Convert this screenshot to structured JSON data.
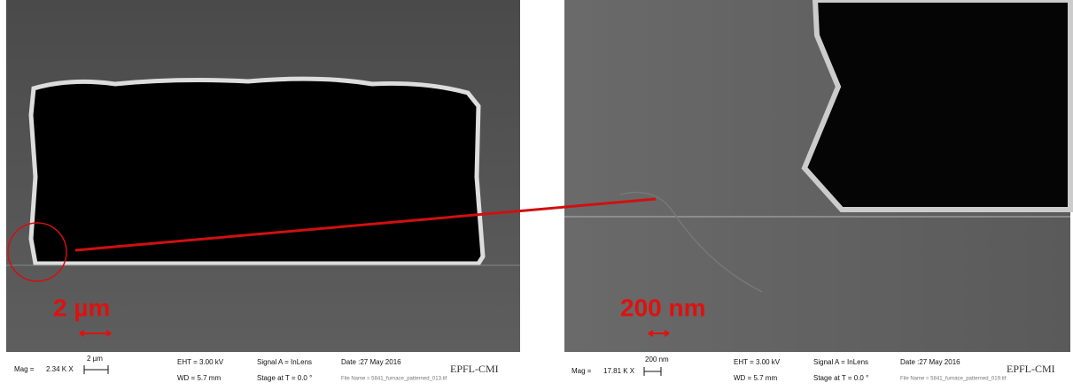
{
  "panels": [
    {
      "scale_label": "2 µm",
      "footer": {
        "mag": "Mag =",
        "mag_value": "2.34 K X",
        "scale_bar": "2 µm",
        "eht": "EHT = 3.00 kV",
        "wd": "WD = 5.7 mm",
        "signal": "Signal A = InLens",
        "stage": "Stage at T = 0.0 °",
        "date": "Date :27 May 2016",
        "file": "File Name = 5841_furnace_patterned_013.tif",
        "logo": "EPFL-CMI"
      }
    },
    {
      "scale_label": "200 nm",
      "footer": {
        "mag": "Mag =",
        "mag_value": "17.81 K X",
        "scale_bar": "200 nm",
        "eht": "EHT = 3.00 kV",
        "wd": "WD = 5.7 mm",
        "signal": "Signal A = InLens",
        "stage": "Stage at T = 0.0 °",
        "date": "Date :27 May 2016",
        "file": "File Name = 5841_furnace_patterned_019.tif",
        "logo": "EPFL-CMI"
      }
    }
  ]
}
